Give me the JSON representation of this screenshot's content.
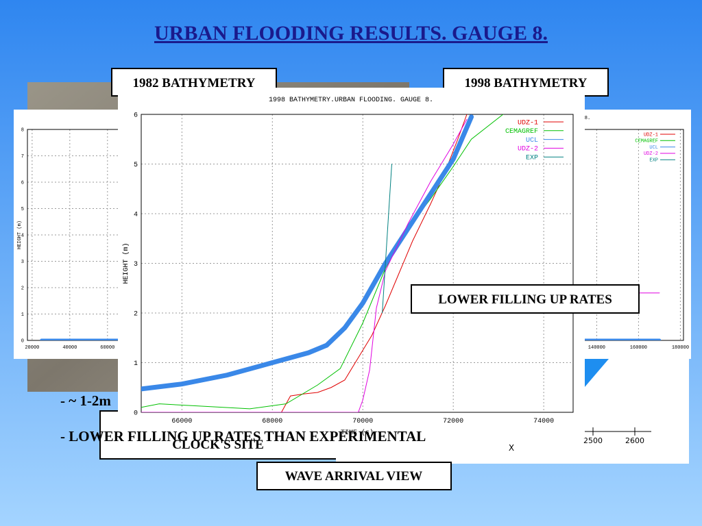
{
  "title": "URBAN FLOODING RESULTS. GAUGE 8.",
  "labels": {
    "bathymetry_1982": "1982 BATHYMETRY",
    "bathymetry_1998": "1998 BATHYMETRY",
    "lower_filling": "LOWER FILLING UP RATES",
    "wave_arrival": "WAVE ARRIVAL VIEW",
    "clock_site": "CLOCK'S SITE"
  },
  "bullets": [
    "- ~ 1-2m",
    "- LOWER FILLING UP RATES THAN EXPERIMENTAL"
  ],
  "fragment": {
    "xticks": [
      2500,
      2600
    ],
    "xlabel": "X"
  },
  "chart_data": [
    {
      "type": "line",
      "title": "1998 BATHYMETRY.URBAN FLOODING. GAUGE 8.",
      "xlabel": "TIME (s)",
      "ylabel": "HEIGHT (m)",
      "xlim": [
        65100,
        74650
      ],
      "xticks": [
        66000,
        68000,
        70000,
        72000,
        74000
      ],
      "ylim": [
        0,
        6
      ],
      "yticks": [
        0,
        1,
        2,
        3,
        4,
        5,
        6
      ],
      "grid": true,
      "legend": "upper right",
      "series": [
        {
          "name": "UDZ-1",
          "color": "#e00000",
          "x": [
            68200,
            68400,
            68700,
            69000,
            69300,
            69600,
            69900,
            70200,
            70500,
            70800,
            71100,
            71500,
            71800,
            72100,
            72300
          ],
          "values": [
            0,
            0.33,
            0.37,
            0.4,
            0.5,
            0.65,
            1.1,
            1.55,
            2.15,
            2.8,
            3.45,
            4.2,
            4.8,
            5.5,
            6
          ]
        },
        {
          "name": "CEMAGREF",
          "color": "#00c000",
          "x": [
            65100,
            65500,
            66500,
            67500,
            68300,
            69000,
            69500,
            70000,
            70500,
            71000,
            71500,
            72000,
            72400,
            73100
          ],
          "values": [
            0.1,
            0.17,
            0.12,
            0.07,
            0.17,
            0.55,
            0.88,
            1.8,
            2.9,
            3.7,
            4.3,
            4.95,
            5.5,
            6
          ]
        },
        {
          "name": "UCL",
          "color": "#3a88e8",
          "x": [
            65100,
            66000,
            67000,
            68000,
            68800,
            69200,
            69600,
            70000,
            70500,
            71000,
            71500,
            72000,
            72400
          ],
          "values": [
            0.47,
            0.57,
            0.75,
            1.0,
            1.2,
            1.35,
            1.7,
            2.2,
            3.0,
            3.7,
            4.4,
            5.1,
            5.95
          ]
        },
        {
          "name": "UDZ-2",
          "color": "#e000e0",
          "x": [
            65100,
            66000,
            67000,
            68000,
            69000,
            69900,
            70000,
            70150,
            70300,
            70500,
            71000,
            71500,
            71800,
            72000,
            72300
          ],
          "values": [
            0,
            0,
            0,
            0,
            0,
            0,
            0.25,
            0.85,
            2.1,
            2.85,
            3.8,
            4.65,
            5.1,
            5.4,
            5.9
          ]
        },
        {
          "name": "EXP",
          "color": "#008080",
          "x": [
            70430,
            70640
          ],
          "values": [
            2.0,
            5.0
          ]
        }
      ]
    },
    {
      "type": "line",
      "ylabel": "HEIGHT (m)",
      "xlim": [
        17500,
        190000
      ],
      "xticks": [
        20000,
        40000,
        60000
      ],
      "ylim": [
        0,
        8
      ],
      "yticks": [
        0,
        1,
        2,
        3,
        4,
        5,
        6,
        7,
        8
      ],
      "grid": true,
      "series": [
        {
          "color": "#3a88e8",
          "x": [
            25000,
            66000
          ],
          "values": [
            0,
            0
          ]
        }
      ]
    },
    {
      "type": "line",
      "title": "8.",
      "xlim": [
        60000,
        181500
      ],
      "xticks": [
        140000,
        160000,
        180000
      ],
      "ylim": [
        0,
        8
      ],
      "grid": true,
      "legend": "upper right",
      "series": [
        {
          "name": "UDZ-1",
          "color": "#e00000",
          "x": [],
          "values": []
        },
        {
          "name": "CEMAGREF",
          "color": "#00c000",
          "x": [],
          "values": []
        },
        {
          "name": "UCL",
          "color": "#3a88e8",
          "x": [
            60000,
            170000
          ],
          "values": [
            0,
            0
          ]
        },
        {
          "name": "UDZ-2",
          "color": "#e000e0",
          "x": [
            100000,
            170000
          ],
          "values": [
            1.8,
            1.8
          ]
        },
        {
          "name": "EXP",
          "color": "#008080",
          "x": [],
          "values": []
        }
      ]
    }
  ]
}
